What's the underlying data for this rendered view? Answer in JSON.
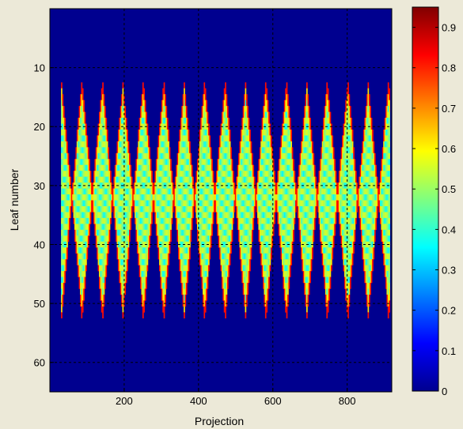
{
  "chart_data": {
    "type": "heatmap",
    "title": "",
    "xlabel": "Projection",
    "ylabel": "Leaf number",
    "xlim": [
      0,
      920
    ],
    "ylim": [
      65,
      0
    ],
    "xticks": [
      "200",
      "400",
      "600",
      "800"
    ],
    "xtick_values": [
      200,
      400,
      600,
      800
    ],
    "yticks": [
      "10",
      "20",
      "30",
      "40",
      "50",
      "60"
    ],
    "ytick_values": [
      10,
      20,
      30,
      40,
      50,
      60
    ],
    "grid": true,
    "colormap": "jet",
    "background_value": 0,
    "pattern": {
      "description": "Periodic V-shaped leaf sweep; bright yellow/green band oscillating between top and bottom leaves",
      "first_projection": 30,
      "last_projection": 915,
      "period": 55,
      "leaf_top": 13,
      "leaf_bottom": 52,
      "leaf_center": 32
    },
    "colorbar": {
      "range": [
        0,
        0.95
      ],
      "ticks": [
        "0",
        "0.1",
        "0.2",
        "0.3",
        "0.4",
        "0.5",
        "0.6",
        "0.7",
        "0.8",
        "0.9"
      ],
      "tick_values": [
        0,
        0.1,
        0.2,
        0.3,
        0.4,
        0.5,
        0.6,
        0.7,
        0.8,
        0.9
      ]
    }
  }
}
